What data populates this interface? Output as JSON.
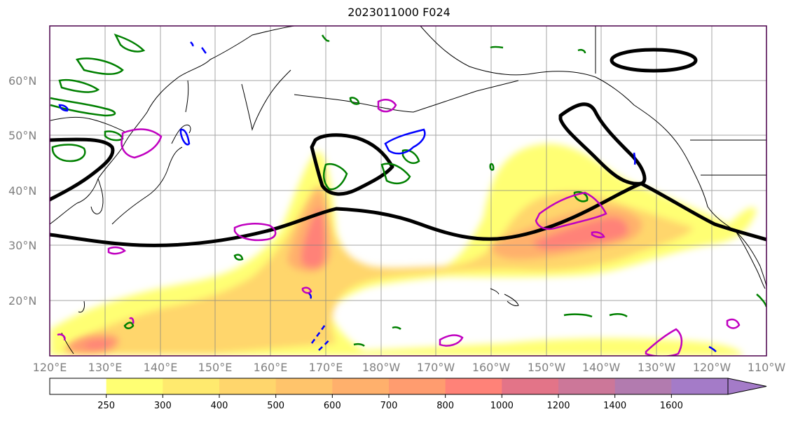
{
  "title": "2023011000 F024",
  "map": {
    "lat_labels": [
      "60°N",
      "50°N",
      "40°N",
      "30°N",
      "20°N"
    ],
    "lon_labels": [
      "120°E",
      "130°E",
      "140°E",
      "150°E",
      "160°E",
      "170°E",
      "180°W",
      "170°W",
      "160°W",
      "150°W",
      "140°W",
      "130°W",
      "120°W",
      "110°W"
    ],
    "gridline_color": "#808080",
    "coastline_color": "#000000",
    "frame_color": "#4b004b",
    "contour_colors": {
      "thick_line": "#000000",
      "green": "#008000",
      "blue": "#0000ff",
      "magenta": "#c000c0"
    }
  },
  "colorbar": {
    "ticks": [
      "250",
      "300",
      "400",
      "500",
      "600",
      "700",
      "800",
      "1000",
      "1200",
      "1400",
      "1600"
    ],
    "colors": [
      "#ffffff",
      "#ffff73",
      "#ffea6e",
      "#ffd66c",
      "#ffc46b",
      "#ffb06c",
      "#ff9c6f",
      "#ff8278",
      "#e37488",
      "#cc7799",
      "#b27baf",
      "#a47bc8"
    ],
    "extend": "max"
  }
}
